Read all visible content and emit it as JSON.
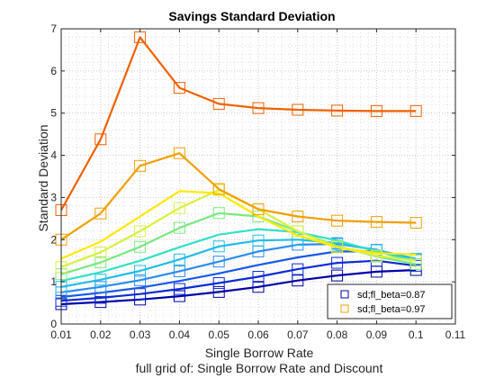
{
  "chart_data": {
    "type": "line",
    "title": "Savings Standard Deviation",
    "xlabel": "Single Borrow Rate",
    "ylabel": "Standard Deviation",
    "caption": "full grid of: Single Borrow Rate and Discount",
    "xlim": [
      0.01,
      0.11
    ],
    "ylim": [
      0,
      7
    ],
    "xticks": [
      0.01,
      0.02,
      0.03,
      0.04,
      0.05,
      0.06,
      0.07,
      0.08,
      0.09,
      0.1,
      0.11
    ],
    "xtick_labels": [
      "0.01",
      "0.02",
      "0.03",
      "0.04",
      "0.05",
      "0.06",
      "0.07",
      "0.08",
      "0.09",
      "0.1",
      "0.11"
    ],
    "yticks": [
      0,
      1,
      2,
      3,
      4,
      5,
      6,
      7
    ],
    "ytick_labels": [
      "0",
      "1",
      "2",
      "3",
      "4",
      "5",
      "6",
      "7"
    ],
    "grid": true,
    "legend_position": "bottom-right",
    "x": [
      0.01,
      0.02,
      0.03,
      0.04,
      0.05,
      0.06,
      0.07,
      0.08,
      0.09,
      0.1
    ],
    "series": [
      {
        "color": "#0000a8",
        "markers": true,
        "values": [
          0.47,
          0.52,
          0.58,
          0.66,
          0.76,
          0.88,
          1.03,
          1.15,
          1.24,
          1.28
        ]
      },
      {
        "color": "#0a2ad6",
        "markers": true,
        "values": [
          0.55,
          0.62,
          0.71,
          0.83,
          0.97,
          1.12,
          1.3,
          1.45,
          1.5,
          1.38
        ]
      },
      {
        "color": "#1858e8",
        "markers": false,
        "values": [
          0.64,
          0.74,
          0.86,
          1.02,
          1.2,
          1.4,
          1.58,
          1.72,
          1.72,
          1.5
        ]
      },
      {
        "color": "#2a8cf0",
        "markers": true,
        "values": [
          0.75,
          0.88,
          1.04,
          1.25,
          1.48,
          1.72,
          1.88,
          1.9,
          1.76,
          1.52
        ]
      },
      {
        "color": "#20bce8",
        "markers": true,
        "values": [
          0.88,
          1.05,
          1.26,
          1.53,
          1.84,
          1.98,
          2.0,
          1.92,
          1.75,
          1.55
        ]
      },
      {
        "color": "#30e0c8",
        "markers": false,
        "values": [
          1.02,
          1.23,
          1.5,
          1.82,
          2.12,
          2.25,
          2.18,
          1.98,
          1.72,
          1.5
        ]
      },
      {
        "color": "#7ae880",
        "markers": true,
        "values": [
          1.18,
          1.46,
          1.83,
          2.28,
          2.63,
          2.55,
          2.2,
          1.85,
          1.6,
          1.42
        ]
      },
      {
        "color": "#d8f040",
        "markers": true,
        "values": [
          1.35,
          1.7,
          2.2,
          2.75,
          3.18,
          2.72,
          2.2,
          1.82,
          1.62,
          1.5
        ]
      },
      {
        "color": "#ffe800",
        "markers": false,
        "values": [
          1.55,
          1.95,
          2.55,
          3.15,
          3.1,
          2.55,
          2.1,
          1.82,
          1.68,
          1.65
        ]
      },
      {
        "color": "#f0a000",
        "markers": true,
        "name": "sd;fl_beta=0.97",
        "values": [
          2.0,
          2.62,
          3.75,
          4.05,
          3.2,
          2.72,
          2.55,
          2.45,
          2.42,
          2.4
        ]
      },
      {
        "color": "#f06000",
        "markers": true,
        "values": [
          2.7,
          4.38,
          6.8,
          5.6,
          5.22,
          5.12,
          5.08,
          5.06,
          5.05,
          5.05
        ]
      }
    ],
    "legend": [
      {
        "label": "sd;fl_beta=0.87",
        "color": "#0000a8"
      },
      {
        "label": "sd;fl_beta=0.97",
        "color": "#f0a000"
      }
    ]
  }
}
